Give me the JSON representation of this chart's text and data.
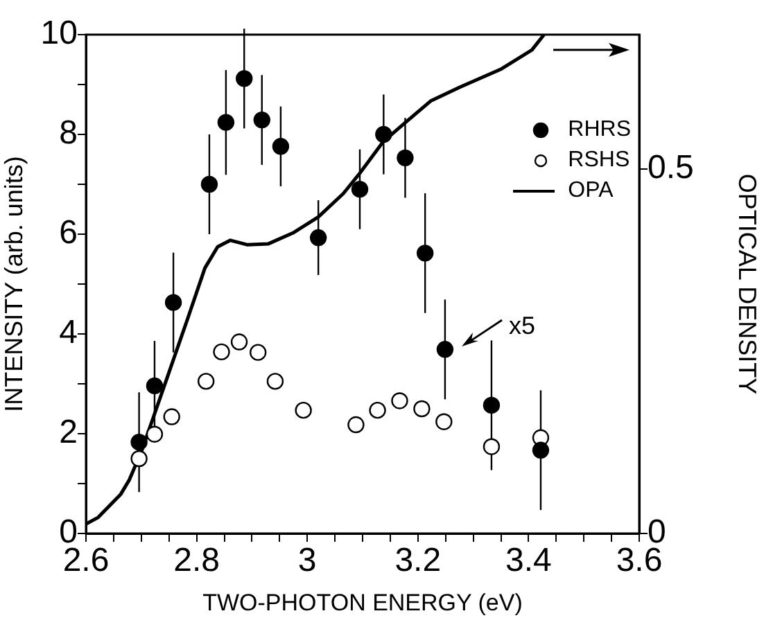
{
  "chart_data": {
    "type": "scatter",
    "xlabel": "TWO-PHOTON ENERGY (eV)",
    "ylabel": "INTENSITY (arb. units)",
    "y2label": "OPTICAL DENSITY",
    "xlim": [
      2.6,
      3.6
    ],
    "xticks": [
      2.6,
      {
        "value": 2.65,
        "label": null
      },
      {
        "value": 2.7,
        "label": null
      },
      {
        "value": 2.75,
        "label": null
      },
      2.8,
      {
        "value": 2.85,
        "label": null
      },
      {
        "value": 2.9,
        "label": null
      },
      {
        "value": 2.95,
        "label": null
      },
      3,
      {
        "value": 3.05,
        "label": null
      },
      {
        "value": 3.1,
        "label": null
      },
      {
        "value": 3.15,
        "label": null
      },
      3.2,
      {
        "value": 3.25,
        "label": null
      },
      {
        "value": 3.3,
        "label": null
      },
      {
        "value": 3.35,
        "label": null
      },
      3.4,
      {
        "value": 3.45,
        "label": null
      },
      {
        "value": 3.5,
        "label": null
      },
      {
        "value": 3.55,
        "label": null
      },
      3.6
    ],
    "ylim": [
      0,
      10
    ],
    "yticks": [
      0,
      {
        "value": 1,
        "label": null
      },
      2,
      {
        "value": 3,
        "label": null
      },
      4,
      {
        "value": 5,
        "label": null
      },
      6,
      {
        "value": 7,
        "label": null
      },
      8,
      {
        "value": 9,
        "label": null
      },
      10
    ],
    "y2lim": [
      0,
      0.684
    ],
    "y2ticks": [
      0,
      0.5
    ],
    "grid": false,
    "legend": "top right",
    "series": [
      {
        "name": "RHRS",
        "type": "scatter",
        "marker": "circle",
        "color": "#000000",
        "x": [
          2.696,
          2.724,
          2.758,
          2.823,
          2.853,
          2.886,
          2.918,
          2.952,
          3.02,
          3.095,
          3.138,
          3.177,
          3.213,
          3.249,
          3.333,
          3.422
        ],
        "values": [
          1.83,
          2.96,
          4.63,
          7.0,
          8.24,
          9.12,
          8.29,
          7.76,
          5.93,
          6.9,
          8.0,
          7.53,
          5.62,
          3.69,
          2.57,
          1.67
        ],
        "errors": [
          1.0,
          0.9,
          1.0,
          1.0,
          1.05,
          1.0,
          0.9,
          0.8,
          0.75,
          0.8,
          0.8,
          0.8,
          1.2,
          1.0,
          1.3,
          1.2
        ]
      },
      {
        "name": "RSHS",
        "type": "scatter",
        "marker": "circle",
        "color": "#000000",
        "x": [
          2.696,
          2.724,
          2.755,
          2.817,
          2.845,
          2.877,
          2.911,
          2.942,
          2.993,
          3.088,
          3.127,
          3.167,
          3.207,
          3.247,
          3.333,
          3.422
        ],
        "values": [
          1.5,
          1.99,
          2.34,
          3.05,
          3.64,
          3.84,
          3.63,
          3.05,
          2.47,
          2.18,
          2.47,
          2.66,
          2.5,
          2.24,
          1.74,
          1.92
        ]
      },
      {
        "name": "OPA",
        "type": "line",
        "axis": "y2",
        "marker": "none",
        "line_style": "solid",
        "color": "#000000",
        "x": [
          2.6,
          2.622,
          2.663,
          2.678,
          2.701,
          2.746,
          2.784,
          2.815,
          2.838,
          2.861,
          2.891,
          2.929,
          2.974,
          3.02,
          3.065,
          3.095,
          3.137,
          3.178,
          3.223,
          3.276,
          3.351,
          3.406,
          3.428
        ],
        "values": [
          0.013,
          0.022,
          0.054,
          0.073,
          0.114,
          0.212,
          0.295,
          0.364,
          0.393,
          0.402,
          0.396,
          0.397,
          0.412,
          0.434,
          0.466,
          0.494,
          0.537,
          0.564,
          0.593,
          0.612,
          0.637,
          0.663,
          0.684
        ]
      }
    ],
    "annotations": [
      {
        "text": "x5",
        "x": 3.249,
        "y": 3.69
      }
    ]
  }
}
